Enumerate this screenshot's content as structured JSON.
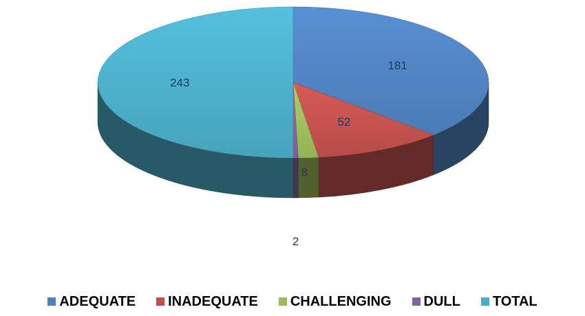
{
  "chart_data": {
    "type": "pie",
    "style": "3d",
    "categories": [
      "ADEQUATE",
      "INADEQUATE",
      "CHALLENGING",
      "DULL",
      "TOTAL"
    ],
    "values": [
      181,
      52,
      8,
      2,
      243
    ],
    "colors": [
      "#4f81bd",
      "#c0504d",
      "#9bbb59",
      "#8064a2",
      "#4bacc6"
    ],
    "data_labels": [
      "181",
      "52",
      "8",
      "2",
      "243"
    ],
    "legend_position": "bottom",
    "title": ""
  }
}
